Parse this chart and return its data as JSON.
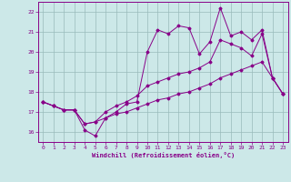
{
  "xlabel": "Windchill (Refroidissement éolien,°C)",
  "background_color": "#cce8e8",
  "line_color": "#880088",
  "grid_color": "#99bbbb",
  "xlim": [
    -0.5,
    23.5
  ],
  "ylim": [
    15.5,
    22.5
  ],
  "xticks": [
    0,
    1,
    2,
    3,
    4,
    5,
    6,
    7,
    8,
    9,
    10,
    11,
    12,
    13,
    14,
    15,
    16,
    17,
    18,
    19,
    20,
    21,
    22,
    23
  ],
  "yticks": [
    16,
    17,
    18,
    19,
    20,
    21,
    22
  ],
  "line1": [
    17.5,
    17.3,
    17.1,
    17.1,
    16.1,
    15.8,
    16.7,
    17.0,
    17.4,
    17.5,
    20.0,
    21.1,
    20.9,
    21.3,
    21.2,
    19.9,
    20.5,
    22.2,
    20.8,
    21.0,
    20.6,
    21.1,
    18.7,
    17.9
  ],
  "line2": [
    17.5,
    17.3,
    17.1,
    17.1,
    16.4,
    16.5,
    17.0,
    17.3,
    17.5,
    17.8,
    18.3,
    18.5,
    18.7,
    18.9,
    19.0,
    19.2,
    19.5,
    20.6,
    20.4,
    20.2,
    19.8,
    20.9,
    18.7,
    17.9
  ],
  "line3": [
    17.5,
    17.3,
    17.1,
    17.1,
    16.4,
    16.5,
    16.7,
    16.9,
    17.0,
    17.2,
    17.4,
    17.6,
    17.7,
    17.9,
    18.0,
    18.2,
    18.4,
    18.7,
    18.9,
    19.1,
    19.3,
    19.5,
    18.7,
    17.9
  ]
}
